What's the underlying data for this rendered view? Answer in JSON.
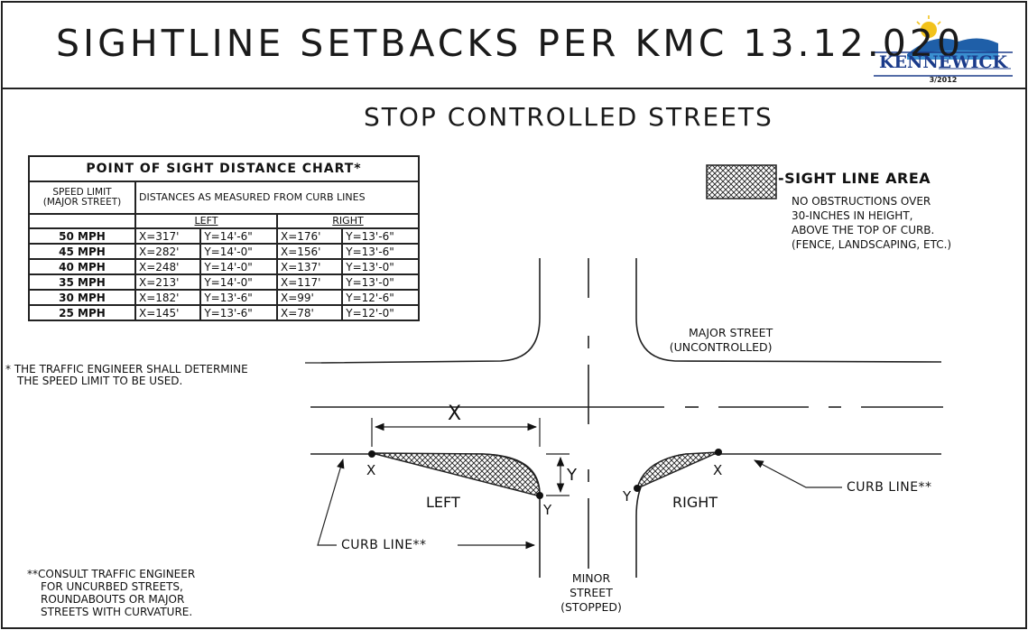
{
  "header": {
    "title": "SIGHTLINE SETBACKS PER KMC 13.12.020",
    "logo_text": "KENNEWICK",
    "logo_date": "3/2012"
  },
  "subtitle": "STOP CONTROLLED STREETS",
  "distance_chart": {
    "title": "POINT OF SIGHT DISTANCE CHART*",
    "col_speed_header_1": "SPEED LIMIT",
    "col_speed_header_2": "(MAJOR STREET)",
    "col_distance_header": "DISTANCES AS MEASURED FROM CURB LINES",
    "left_label": "LEFT",
    "right_label": "RIGHT",
    "rows": [
      {
        "speed": "50 MPH",
        "left_x": "X=317'",
        "left_y": "Y=14'-6\"",
        "right_x": "X=176'",
        "right_y": "Y=13'-6\""
      },
      {
        "speed": "45 MPH",
        "left_x": "X=282'",
        "left_y": "Y=14'-0\"",
        "right_x": "X=156'",
        "right_y": "Y=13'-6\""
      },
      {
        "speed": "40 MPH",
        "left_x": "X=248'",
        "left_y": "Y=14'-0\"",
        "right_x": "X=137'",
        "right_y": "Y=13'-0\""
      },
      {
        "speed": "35 MPH",
        "left_x": "X=213'",
        "left_y": "Y=14'-0\"",
        "right_x": "X=117'",
        "right_y": "Y=13'-0\""
      },
      {
        "speed": "30 MPH",
        "left_x": "X=182'",
        "left_y": "Y=13'-6\"",
        "right_x": "X=99'",
        "right_y": "Y=12'-6\""
      },
      {
        "speed": "25 MPH",
        "left_x": "X=145'",
        "left_y": "Y=13'-6\"",
        "right_x": "X=78'",
        "right_y": "Y=12'-0\""
      }
    ]
  },
  "footnotes": {
    "traffic_engineer_line1": "* THE TRAFFIC ENGINEER SHALL DETERMINE",
    "traffic_engineer_line2": "THE SPEED LIMIT TO BE USED.",
    "consult_line1": "**CONSULT TRAFFIC ENGINEER",
    "consult_line2": "FOR UNCURBED STREETS,",
    "consult_line3": "ROUNDABOUTS OR MAJOR",
    "consult_line4": "STREETS WITH CURVATURE."
  },
  "legend": {
    "label": "-SIGHT LINE AREA",
    "note_line1": "NO OBSTRUCTIONS OVER",
    "note_line2": "30-INCHES IN HEIGHT,",
    "note_line3": "ABOVE THE TOP OF CURB.",
    "note_line4": "(FENCE, LANDSCAPING, ETC.)"
  },
  "diagram": {
    "major_street_line1": "MAJOR STREET",
    "major_street_line2": "(UNCONTROLLED)",
    "minor_street_line1": "MINOR",
    "minor_street_line2": "STREET",
    "minor_street_line3": "(STOPPED)",
    "x_dim": "X",
    "left_x": "X",
    "left_y": "Y",
    "y_dim": "Y",
    "left_label": "LEFT",
    "right_label": "RIGHT",
    "right_x": "X",
    "right_y": "Y",
    "curb_line_left": "CURB LINE**",
    "curb_line_right": "CURB LINE**"
  },
  "colors": {
    "ink": "#111111",
    "logo_blue": "#1b3b8a"
  }
}
